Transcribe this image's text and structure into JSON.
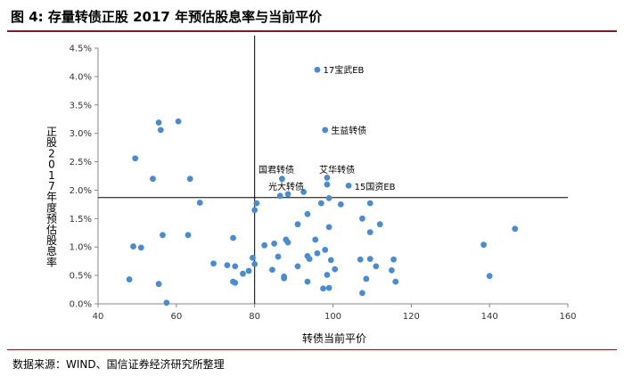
{
  "header": {
    "title": "图 4:  存量转债正股 2017 年预估股息率与当前平价"
  },
  "footer": {
    "source": "数据来源：WIND、国信证券经济研究所整理"
  },
  "chart_data": {
    "type": "scatter",
    "xlabel": "转债当前平价",
    "ylabel": "正股2017年度预估股息率",
    "xlim": [
      40,
      160
    ],
    "ylim": [
      0,
      4.5
    ],
    "xticks": [
      "40",
      "60",
      "80",
      "100",
      "120",
      "140",
      "160"
    ],
    "yticks": [
      "0.0%",
      "0.5%",
      "1.0%",
      "1.5%",
      "2.0%",
      "2.5%",
      "3.0%",
      "3.5%",
      "4.0%",
      "4.5%"
    ],
    "point_color": "#4a8ccf",
    "ref_lines": {
      "x": 80,
      "y": 1.87
    },
    "points": [
      {
        "x": 96,
        "y": 4.12
      },
      {
        "x": 98,
        "y": 3.06
      },
      {
        "x": 60.5,
        "y": 3.21
      },
      {
        "x": 55.5,
        "y": 3.19
      },
      {
        "x": 56,
        "y": 3.06
      },
      {
        "x": 49.5,
        "y": 2.56
      },
      {
        "x": 54,
        "y": 2.2
      },
      {
        "x": 63.5,
        "y": 2.2
      },
      {
        "x": 87,
        "y": 2.2
      },
      {
        "x": 98.5,
        "y": 2.22
      },
      {
        "x": 98.5,
        "y": 2.1
      },
      {
        "x": 104,
        "y": 2.08
      },
      {
        "x": 86.5,
        "y": 1.9
      },
      {
        "x": 88.5,
        "y": 1.93
      },
      {
        "x": 92.5,
        "y": 1.97
      },
      {
        "x": 99,
        "y": 1.86
      },
      {
        "x": 66,
        "y": 1.78
      },
      {
        "x": 80,
        "y": 1.65
      },
      {
        "x": 80.5,
        "y": 1.77
      },
      {
        "x": 97,
        "y": 1.77
      },
      {
        "x": 102,
        "y": 1.75
      },
      {
        "x": 109.5,
        "y": 1.77
      },
      {
        "x": 93.5,
        "y": 1.58
      },
      {
        "x": 107.5,
        "y": 1.5
      },
      {
        "x": 112,
        "y": 1.4
      },
      {
        "x": 91,
        "y": 1.4
      },
      {
        "x": 99,
        "y": 1.35
      },
      {
        "x": 109.5,
        "y": 1.26
      },
      {
        "x": 56.5,
        "y": 1.21
      },
      {
        "x": 63,
        "y": 1.21
      },
      {
        "x": 74.5,
        "y": 1.16
      },
      {
        "x": 95.5,
        "y": 1.13
      },
      {
        "x": 88,
        "y": 1.13
      },
      {
        "x": 88.5,
        "y": 1.08
      },
      {
        "x": 85,
        "y": 1.06
      },
      {
        "x": 82.5,
        "y": 1.03
      },
      {
        "x": 49,
        "y": 1.01
      },
      {
        "x": 51,
        "y": 0.99
      },
      {
        "x": 98,
        "y": 0.95
      },
      {
        "x": 96,
        "y": 0.89
      },
      {
        "x": 93.5,
        "y": 0.84
      },
      {
        "x": 94,
        "y": 0.79
      },
      {
        "x": 86,
        "y": 0.83
      },
      {
        "x": 79.5,
        "y": 0.81
      },
      {
        "x": 99.5,
        "y": 0.77
      },
      {
        "x": 107,
        "y": 0.78
      },
      {
        "x": 109.5,
        "y": 0.79
      },
      {
        "x": 115.5,
        "y": 0.78
      },
      {
        "x": 80,
        "y": 0.7
      },
      {
        "x": 69.5,
        "y": 0.71
      },
      {
        "x": 73,
        "y": 0.68
      },
      {
        "x": 75,
        "y": 0.66
      },
      {
        "x": 84.5,
        "y": 0.6
      },
      {
        "x": 91,
        "y": 0.66
      },
      {
        "x": 100.5,
        "y": 0.61
      },
      {
        "x": 111,
        "y": 0.66
      },
      {
        "x": 115,
        "y": 0.59
      },
      {
        "x": 78.5,
        "y": 0.58
      },
      {
        "x": 77,
        "y": 0.53
      },
      {
        "x": 98.5,
        "y": 0.51
      },
      {
        "x": 87.5,
        "y": 0.48
      },
      {
        "x": 87.5,
        "y": 0.45
      },
      {
        "x": 108.5,
        "y": 0.44
      },
      {
        "x": 48,
        "y": 0.43
      },
      {
        "x": 74.5,
        "y": 0.39
      },
      {
        "x": 75,
        "y": 0.37
      },
      {
        "x": 55.5,
        "y": 0.35
      },
      {
        "x": 93.5,
        "y": 0.39
      },
      {
        "x": 116,
        "y": 0.39
      },
      {
        "x": 97.5,
        "y": 0.27
      },
      {
        "x": 99,
        "y": 0.28
      },
      {
        "x": 107.5,
        "y": 0.19
      },
      {
        "x": 57.5,
        "y": 0.02
      },
      {
        "x": 138.5,
        "y": 1.04
      },
      {
        "x": 140,
        "y": 0.49
      },
      {
        "x": 146.5,
        "y": 1.32
      }
    ],
    "annotations": [
      {
        "text": "17宝武EB",
        "x": 97.5,
        "y": 4.12
      },
      {
        "text": "生益转债",
        "x": 99.5,
        "y": 3.06
      },
      {
        "text": "国君转债",
        "x": 81,
        "y": 2.37
      },
      {
        "text": "艾华转债",
        "x": 96.5,
        "y": 2.37
      },
      {
        "text": "光大转债",
        "x": 83.5,
        "y": 2.07
      },
      {
        "text": "15国资EB",
        "x": 105.5,
        "y": 2.07
      }
    ]
  }
}
